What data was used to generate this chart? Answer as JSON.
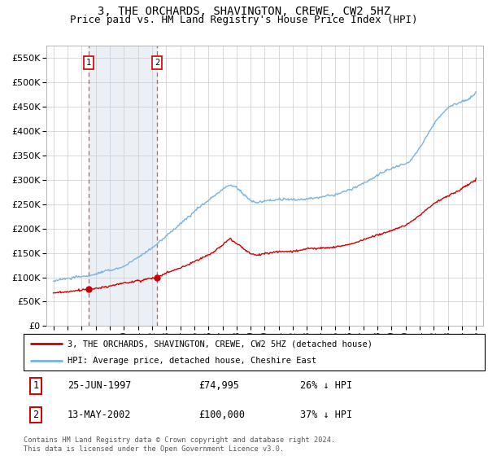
{
  "title": "3, THE ORCHARDS, SHAVINGTON, CREWE, CW2 5HZ",
  "subtitle": "Price paid vs. HM Land Registry's House Price Index (HPI)",
  "ylim": [
    0,
    575000
  ],
  "yticks": [
    0,
    50000,
    100000,
    150000,
    200000,
    250000,
    300000,
    350000,
    400000,
    450000,
    500000,
    550000
  ],
  "xlim": [
    1994.5,
    2025.5
  ],
  "sale1_date": 1997.49,
  "sale1_price": 74995,
  "sale1_label": "1",
  "sale2_date": 2002.36,
  "sale2_price": 100000,
  "sale2_label": "2",
  "hpi_color": "#7ab3e0",
  "price_color": "#cc0000",
  "vline_color": "#e05050",
  "bg_shade_color": "#dce6f1",
  "legend_line1": "3, THE ORCHARDS, SHAVINGTON, CREWE, CW2 5HZ (detached house)",
  "legend_line2": "HPI: Average price, detached house, Cheshire East",
  "table_row1_num": "1",
  "table_row1_date": "25-JUN-1997",
  "table_row1_price": "£74,995",
  "table_row1_hpi": "26% ↓ HPI",
  "table_row2_num": "2",
  "table_row2_date": "13-MAY-2002",
  "table_row2_price": "£100,000",
  "table_row2_hpi": "37% ↓ HPI",
  "footer": "Contains HM Land Registry data © Crown copyright and database right 2024.\nThis data is licensed under the Open Government Licence v3.0.",
  "title_fontsize": 10,
  "subtitle_fontsize": 9,
  "tick_fontsize": 7,
  "axis_fontsize": 8
}
